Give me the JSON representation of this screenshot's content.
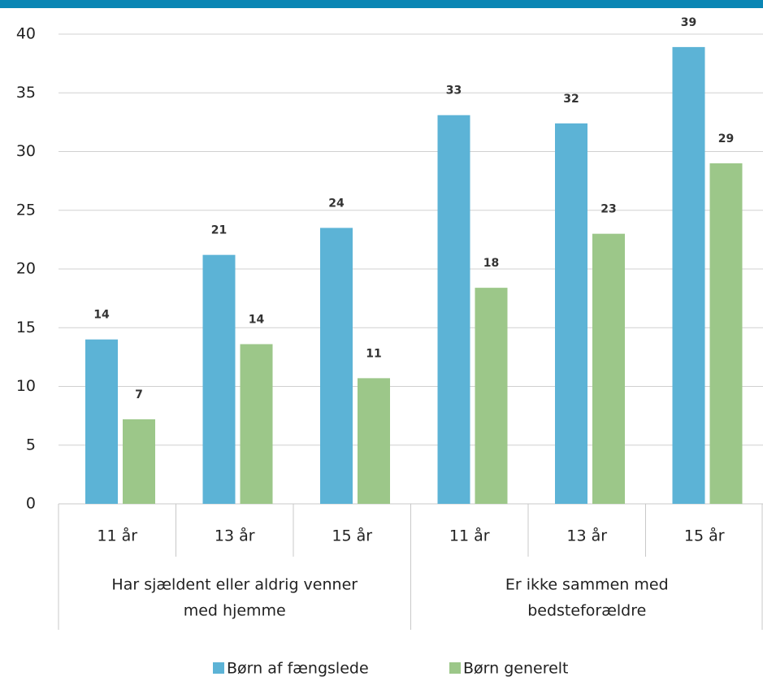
{
  "chart_data": {
    "type": "bar",
    "groups": [
      {
        "label_lines": [
          "Har sjældent eller aldrig venner",
          "med hjemme"
        ],
        "categories": [
          "11 år",
          "13 år",
          "15 år"
        ]
      },
      {
        "label_lines": [
          "Er ikke sammen med",
          "bedsteforældre"
        ],
        "categories": [
          "11 år",
          "13 år",
          "15 år"
        ]
      }
    ],
    "series": [
      {
        "name": "Børn af fængslede",
        "color": "#5cb3d6",
        "values": [
          14,
          21.2,
          23.5,
          33.1,
          32.4,
          38.9
        ],
        "value_labels": [
          "14",
          "21",
          "24",
          "33",
          "32",
          "39"
        ]
      },
      {
        "name": "Børn generelt",
        "color": "#9cc789",
        "values": [
          7.2,
          13.6,
          10.7,
          18.4,
          23,
          29
        ],
        "value_labels": [
          "7",
          "14",
          "11",
          "18",
          "23",
          "29"
        ]
      }
    ],
    "ylim": [
      0,
      40
    ],
    "yticks": [
      0,
      5,
      10,
      15,
      20,
      25,
      30,
      35,
      40
    ],
    "grid": true
  }
}
